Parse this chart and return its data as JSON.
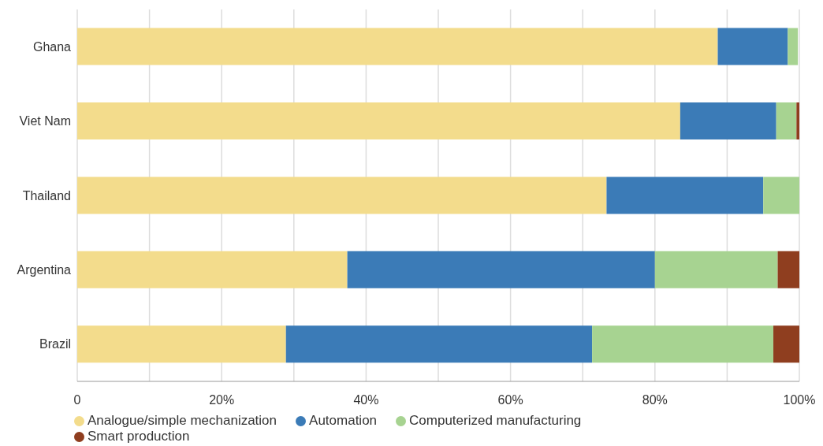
{
  "chart_data": {
    "type": "bar",
    "orientation": "horizontal",
    "stacked": true,
    "categories": [
      "Ghana",
      "Viet Nam",
      "Thailand",
      "Argentina",
      "Brazil"
    ],
    "series": [
      {
        "name": "Analogue/simple mechanization",
        "color": "#f3dc8c",
        "values": [
          88.7,
          83.5,
          73.3,
          37.4,
          28.9
        ]
      },
      {
        "name": "Automation",
        "color": "#3b7bb7",
        "values": [
          9.7,
          13.3,
          21.7,
          42.6,
          42.4
        ]
      },
      {
        "name": "Computerized manufacturing",
        "color": "#a7d391",
        "values": [
          1.4,
          2.8,
          5.0,
          17.0,
          25.1
        ]
      },
      {
        "name": "Smart production",
        "color": "#8f3e1f",
        "values": [
          0,
          0.4,
          0,
          3.0,
          3.6
        ]
      }
    ],
    "xlim": [
      0,
      100
    ],
    "xticks": [
      0,
      {
        "value": 10,
        "label": null
      },
      {
        "value": 20,
        "label": "20%"
      },
      {
        "value": 30,
        "label": null
      },
      {
        "value": 40,
        "label": "40%"
      },
      {
        "value": 50,
        "label": null
      },
      {
        "value": 60,
        "label": "60%"
      },
      {
        "value": 70,
        "label": null
      },
      {
        "value": 80,
        "label": "80%"
      },
      {
        "value": 90,
        "label": null
      },
      {
        "value": 100,
        "label": "100%"
      }
    ],
    "grid": "x",
    "legend": "bottom left"
  }
}
